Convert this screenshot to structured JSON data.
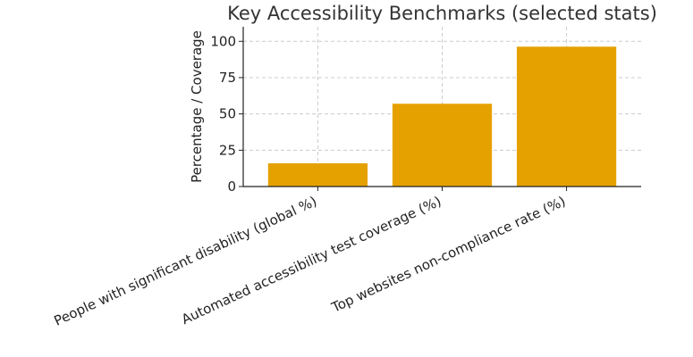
{
  "chart_data": {
    "type": "bar",
    "title": "Key Accessibility Benchmarks (selected stats)",
    "xlabel": "",
    "ylabel": "Percentage / Coverage",
    "categories": [
      "People with significant disability (global %)",
      "Automated accessibility test coverage (%)",
      "Top websites non-compliance rate (%)"
    ],
    "values": [
      16,
      57,
      96.3
    ],
    "ylim": [
      0,
      110
    ],
    "yticks": [
      0,
      25,
      50,
      75,
      100
    ],
    "grid": true,
    "bar_color": "#E5A100"
  }
}
